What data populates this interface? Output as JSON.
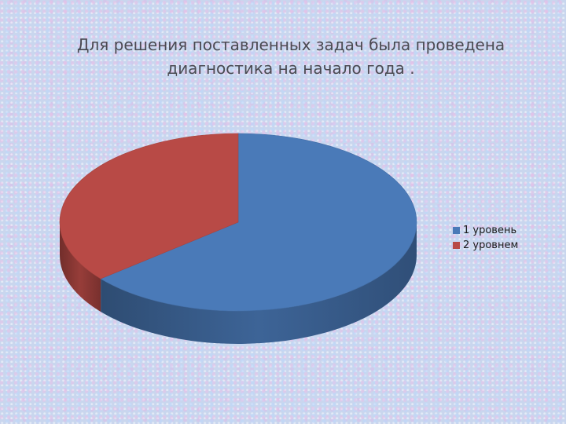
{
  "slide": {
    "title": "Для решения поставленных задач была проведена диагностика на начало года ."
  },
  "chart_data": {
    "type": "pie",
    "categories": [
      "1 уровень",
      "2 уровнем"
    ],
    "values": [
      64,
      36
    ],
    "colors": [
      "#4a7ab8",
      "#b84a46"
    ],
    "legend_position": "right",
    "style": "3d"
  }
}
